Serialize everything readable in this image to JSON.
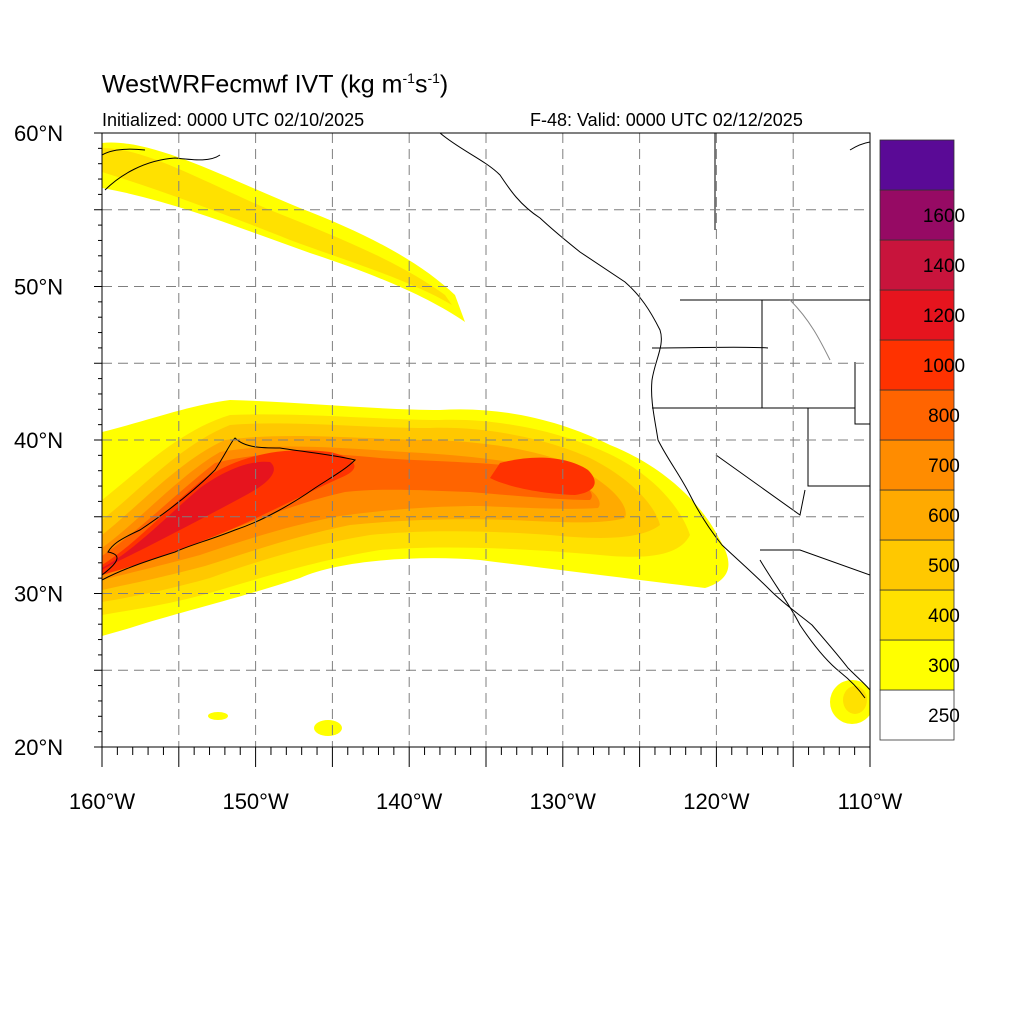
{
  "map": {
    "title_main": "WestWRFecmwf IVT (kg m",
    "title_exp1": "-1",
    "title_mid": "s",
    "title_exp2": "-1",
    "title_end": ")",
    "initialized": "Initialized: 0000 UTC 02/10/2025",
    "valid": "F-48: Valid: 0000 UTC 02/12/2025"
  },
  "axes": {
    "lon_labels": [
      "160°W",
      "150°W",
      "140°W",
      "130°W",
      "120°W",
      "110°W"
    ],
    "lat_labels": [
      "60°N",
      "50°N",
      "40°N",
      "30°N",
      "20°N"
    ],
    "lon_range": [
      -160,
      -110
    ],
    "lat_range": [
      20,
      60
    ]
  },
  "colorbar": {
    "labels": [
      "250",
      "300",
      "400",
      "500",
      "600",
      "700",
      "800",
      "1000",
      "1200",
      "1400",
      "1600"
    ],
    "colors": [
      "#ffffff",
      "#ffff00",
      "#ffe100",
      "#ffc800",
      "#ffaa00",
      "#ff8c00",
      "#ff6400",
      "#ff3200",
      "#e6141e",
      "#c8143c",
      "#960a64",
      "#5a0a96"
    ]
  },
  "features": {
    "colors": {
      "ivt_250": "#ffff00",
      "ivt_300": "#ffe100",
      "ivt_400": "#ffc800",
      "ivt_500": "#ffaa00",
      "ivt_600": "#ff8c00",
      "ivt_700": "#ff6400",
      "ivt_800": "#ff3200",
      "ivt_1000": "#e6141e"
    }
  }
}
